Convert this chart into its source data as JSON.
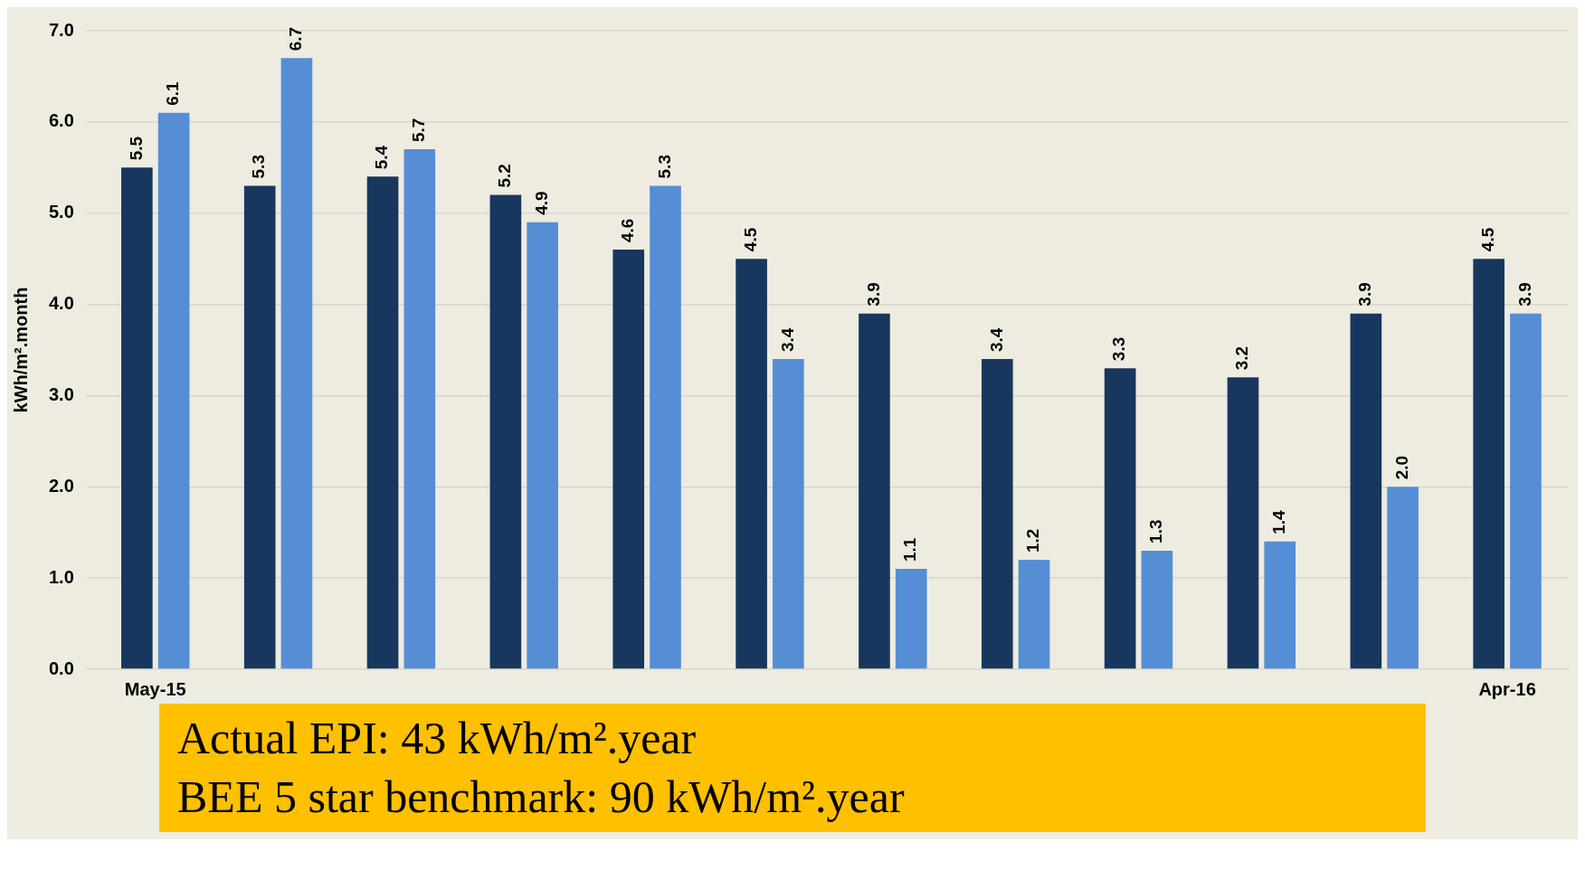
{
  "chart_data": {
    "type": "bar",
    "categories": [
      "May-15",
      null,
      null,
      null,
      null,
      null,
      null,
      null,
      null,
      null,
      null,
      "Apr-16"
    ],
    "series": [
      {
        "color": "#17375e",
        "values": [
          5.5,
          5.3,
          5.4,
          5.2,
          4.6,
          4.5,
          3.9,
          3.4,
          3.3,
          3.2,
          3.9,
          4.5
        ],
        "value_labels": [
          "5.5",
          "5.3",
          "5.4",
          "5.2",
          "4.6",
          "4.5",
          "3.9",
          "3.4",
          "3.3",
          "3.2",
          "3.9",
          "4.5"
        ]
      },
      {
        "color": "#558ed5",
        "values": [
          6.1,
          6.7,
          5.7,
          4.9,
          5.3,
          3.4,
          1.1,
          1.2,
          1.3,
          1.4,
          2.0,
          3.9
        ],
        "value_labels": [
          "6.1",
          "6.7",
          "5.7",
          "4.9",
          "5.3",
          "3.4",
          "1.1",
          "1.2",
          "1.3",
          "1.4",
          "2.0",
          "3.9"
        ]
      }
    ],
    "ylabel": "kWh/m².month",
    "ylim": [
      0,
      7
    ],
    "yticks": [
      {
        "value": 0,
        "label": "0.0"
      },
      {
        "value": 1,
        "label": "1.0"
      },
      {
        "value": 2,
        "label": "2.0"
      },
      {
        "value": 3,
        "label": "3.0"
      },
      {
        "value": 4,
        "label": "4.0"
      },
      {
        "value": 5,
        "label": "5.0"
      },
      {
        "value": 6,
        "label": "6.0"
      },
      {
        "value": 7,
        "label": "7.0"
      }
    ],
    "grid": "y",
    "legend": false,
    "annotations": [
      "Actual EPI: 43 kWh/m².year",
      "BEE 5 star benchmark: 90 kWh/m².year"
    ]
  }
}
